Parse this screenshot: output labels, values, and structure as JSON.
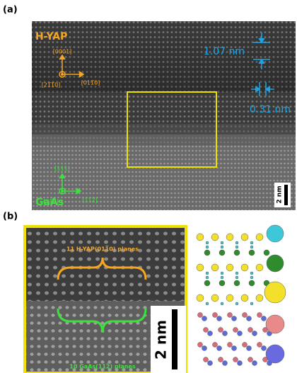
{
  "panel_a": {
    "label": "(a)",
    "top_phase": "H-YAP",
    "top_direction_up": "[0001]",
    "top_direction_out": "[21̅1̅0]",
    "top_direction_right": "[011̅0]",
    "spacing_c": "1.07 nm",
    "spacing_a": "0.31 nm",
    "bottom_phase": "GaAs",
    "bottom_direction_up": "[111]",
    "bottom_direction_out": "[11̅0]",
    "bottom_direction_right": "[112̅]",
    "scale_bar": "2 nm"
  },
  "panel_b": {
    "label": "(b)",
    "top_planes": "11 H-YAP(011̅0) planes",
    "bottom_planes": "10 GaAs(112̅) planes",
    "scale_bar": "2 nm"
  }
}
